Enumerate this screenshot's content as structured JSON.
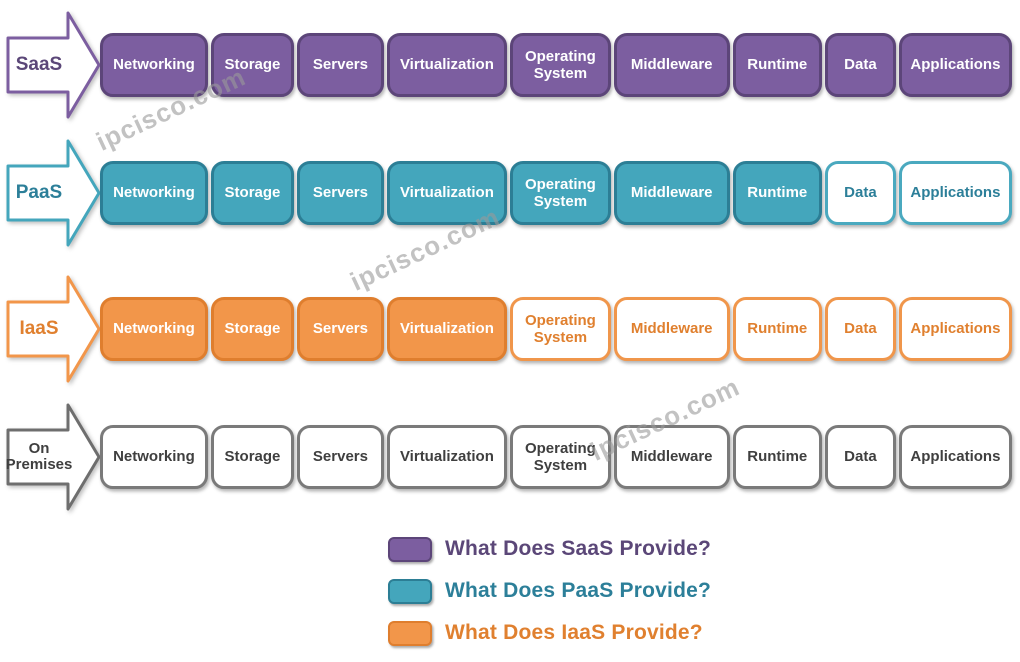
{
  "colors": {
    "saas": {
      "fill": "#7C5EA0",
      "border": "#5C4579",
      "unfilled_border": "#8A6BAD",
      "label_text": "#5B4778"
    },
    "paas": {
      "fill": "#44A6BC",
      "border": "#2C7E95",
      "unfilled_border": "#4AA9BF",
      "label_text": "#2C7F99"
    },
    "iaas": {
      "fill": "#F2964A",
      "border": "#DF7E2E",
      "unfilled_border": "#F0964B",
      "label_text": "#E0802F"
    },
    "onprem": {
      "fill": "#FFFFFF",
      "border": "#7A7A7A",
      "unfilled_border": "#8A8A8A",
      "label_text": "#3F3F3F"
    }
  },
  "layers": [
    "Networking",
    "Storage",
    "Servers",
    "Virtualization",
    "Operating System",
    "Middleware",
    "Runtime",
    "Data",
    "Applications"
  ],
  "rows": [
    {
      "id": "saas",
      "label": "SaaS",
      "filled_layers": 9
    },
    {
      "id": "paas",
      "label": "PaaS",
      "filled_layers": 7
    },
    {
      "id": "iaas",
      "label": "IaaS",
      "filled_layers": 4
    },
    {
      "id": "onprem",
      "label": "On Premises",
      "filled_layers": 0
    }
  ],
  "legend": [
    {
      "id": "saas",
      "label": "What Does SaaS Provide?"
    },
    {
      "id": "paas",
      "label": "What Does PaaS Provide?"
    },
    {
      "id": "iaas",
      "label": "What Does IaaS Provide?"
    }
  ],
  "watermark": {
    "text": "ipcisco.com"
  }
}
